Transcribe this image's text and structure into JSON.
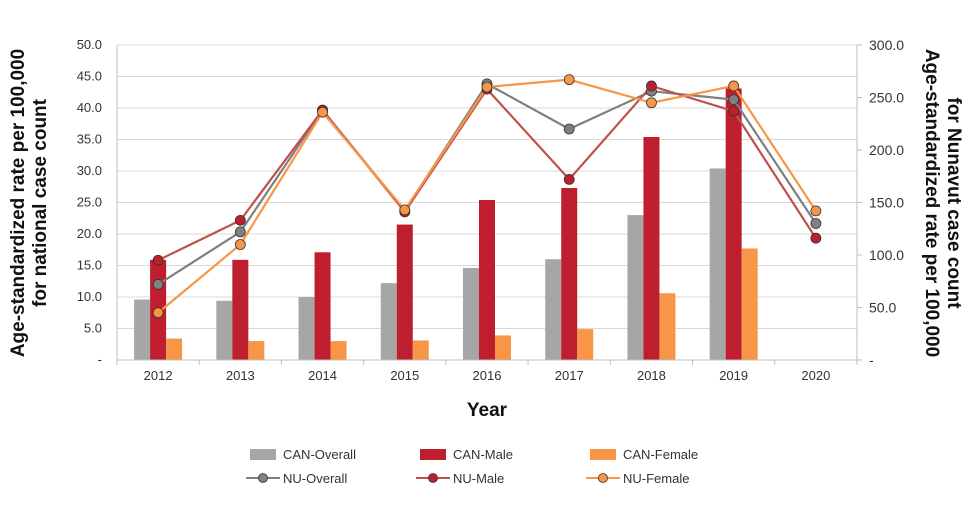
{
  "chart_data": {
    "type": "bar+line",
    "categories": [
      "2012",
      "2013",
      "2014",
      "2015",
      "2016",
      "2017",
      "2018",
      "2019",
      "2020"
    ],
    "xlabel": "Year",
    "ylabel_left": "Age-standardized rate per 100,000 for national case count",
    "ylabel_left_lines": [
      "Age-standardized rate per 100,000",
      "for national case count"
    ],
    "ylabel_right": "Age-standardized rate per 100,000 for Nunavut case count",
    "ylabel_right_lines": [
      "Age-standardized rate per 100,000",
      "for Nunavut case count"
    ],
    "ylim_left": [
      0,
      50
    ],
    "ylim_right": [
      0,
      300
    ],
    "yticks_left": [
      "-",
      "5.0",
      "10.0",
      "15.0",
      "20.0",
      "25.0",
      "30.0",
      "35.0",
      "40.0",
      "45.0",
      "50.0"
    ],
    "yticks_right": [
      "-",
      "50.0",
      "100.0",
      "150.0",
      "200.0",
      "250.0",
      "300.0"
    ],
    "grid": true,
    "legend_position": "bottom",
    "bar_series": [
      {
        "name": "CAN-Overall",
        "color": "#a6a6a6",
        "axis": "left",
        "values": [
          9.6,
          9.4,
          10.0,
          12.2,
          14.6,
          16.0,
          23.0,
          30.4,
          null
        ]
      },
      {
        "name": "CAN-Male",
        "color": "#be1e2d",
        "axis": "left",
        "values": [
          15.9,
          15.9,
          17.1,
          21.5,
          25.4,
          27.3,
          35.4,
          43.1,
          null
        ]
      },
      {
        "name": "CAN-Female",
        "color": "#f79646",
        "axis": "left",
        "values": [
          3.4,
          3.0,
          3.0,
          3.1,
          3.9,
          4.9,
          10.6,
          17.7,
          null
        ]
      }
    ],
    "line_series": [
      {
        "name": "NU-Overall",
        "color": "#7f7f7f",
        "marker": "#808080",
        "axis": "right",
        "values": [
          72,
          122,
          238,
          142,
          263,
          220,
          256,
          248,
          130
        ]
      },
      {
        "name": "NU-Male",
        "color": "#c0504d",
        "marker": "#be1e2d",
        "axis": "right",
        "values": [
          95,
          133,
          238,
          141,
          258,
          172,
          261,
          237,
          116
        ]
      },
      {
        "name": "NU-Female",
        "color": "#f79646",
        "marker": "#f79646",
        "axis": "right",
        "values": [
          45,
          110,
          236,
          143,
          260,
          267,
          245,
          261,
          142
        ]
      }
    ]
  }
}
